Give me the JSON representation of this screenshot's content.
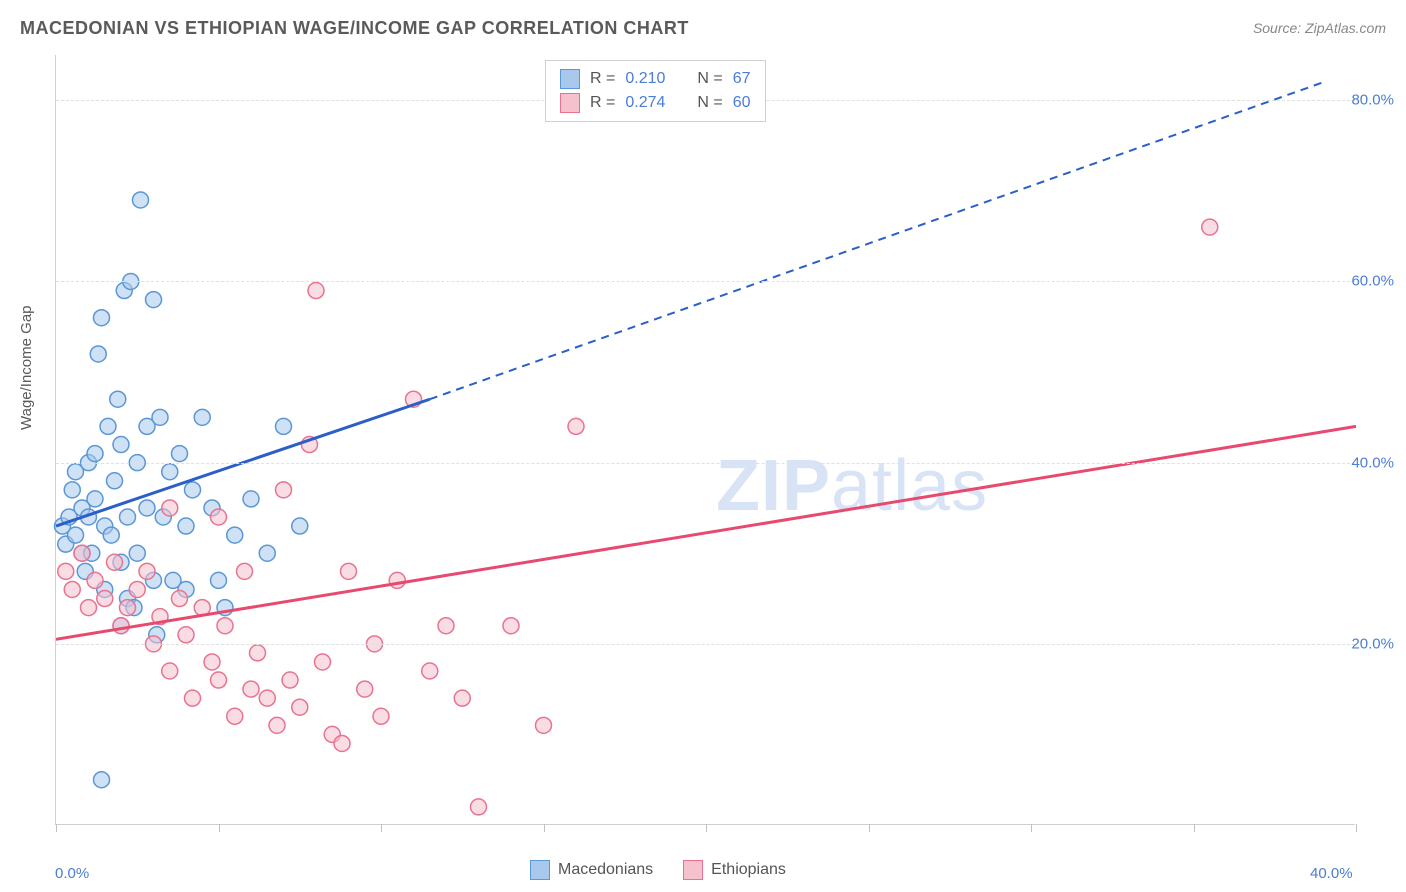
{
  "title": "MACEDONIAN VS ETHIOPIAN WAGE/INCOME GAP CORRELATION CHART",
  "source": "Source: ZipAtlas.com",
  "watermark": {
    "bold": "ZIP",
    "rest": "atlas"
  },
  "ylabel": "Wage/Income Gap",
  "chart": {
    "type": "scatter",
    "xlim": [
      0,
      40
    ],
    "ylim": [
      0,
      85
    ],
    "yticks": [
      20,
      40,
      60,
      80
    ],
    "ytick_labels": [
      "20.0%",
      "40.0%",
      "60.0%",
      "80.0%"
    ],
    "xticks": [
      0,
      5,
      10,
      15,
      20,
      25,
      30,
      35,
      40
    ],
    "xtick_labels_shown": {
      "0": "0.0%",
      "40": "40.0%"
    },
    "grid_color": "#e0e0e0",
    "background_color": "#ffffff",
    "axis_color": "#d0d0d0",
    "series": [
      {
        "name": "Macedonians",
        "color_fill": "#a8c9ec",
        "color_stroke": "#5b96d6",
        "trend_color": "#2a5fc9",
        "trend_solid": [
          [
            0,
            33
          ],
          [
            11.5,
            47
          ]
        ],
        "trend_dash": [
          [
            11.5,
            47
          ],
          [
            39,
            82
          ]
        ],
        "R": "0.210",
        "N": "67",
        "points": [
          [
            0.2,
            33
          ],
          [
            0.3,
            31
          ],
          [
            0.4,
            34
          ],
          [
            0.5,
            37
          ],
          [
            0.6,
            32
          ],
          [
            0.6,
            39
          ],
          [
            0.8,
            30
          ],
          [
            0.8,
            35
          ],
          [
            0.9,
            28
          ],
          [
            1.0,
            40
          ],
          [
            1.0,
            34
          ],
          [
            1.1,
            30
          ],
          [
            1.2,
            41
          ],
          [
            1.2,
            36
          ],
          [
            1.3,
            52
          ],
          [
            1.4,
            56
          ],
          [
            1.5,
            33
          ],
          [
            1.5,
            26
          ],
          [
            1.6,
            44
          ],
          [
            1.7,
            32
          ],
          [
            1.8,
            38
          ],
          [
            1.9,
            47
          ],
          [
            2.0,
            29
          ],
          [
            2.0,
            42
          ],
          [
            2.1,
            59
          ],
          [
            2.2,
            25
          ],
          [
            2.2,
            34
          ],
          [
            2.3,
            60
          ],
          [
            2.4,
            24
          ],
          [
            2.5,
            40
          ],
          [
            2.5,
            30
          ],
          [
            2.6,
            69
          ],
          [
            2.8,
            35
          ],
          [
            2.8,
            44
          ],
          [
            3.0,
            58
          ],
          [
            3.0,
            27
          ],
          [
            3.1,
            21
          ],
          [
            3.2,
            45
          ],
          [
            3.3,
            34
          ],
          [
            3.5,
            39
          ],
          [
            3.6,
            27
          ],
          [
            3.8,
            41
          ],
          [
            4.0,
            33
          ],
          [
            4.0,
            26
          ],
          [
            4.2,
            37
          ],
          [
            4.5,
            45
          ],
          [
            4.8,
            35
          ],
          [
            5.0,
            27
          ],
          [
            5.2,
            24
          ],
          [
            5.5,
            32
          ],
          [
            6.0,
            36
          ],
          [
            6.5,
            30
          ],
          [
            7.0,
            44
          ],
          [
            7.5,
            33
          ],
          [
            1.4,
            5
          ],
          [
            2.0,
            22
          ]
        ]
      },
      {
        "name": "Ethiopians",
        "color_fill": "#f5c1cd",
        "color_stroke": "#e8738f",
        "trend_color": "#e8496f",
        "trend_solid": [
          [
            0,
            20.5
          ],
          [
            40,
            44
          ]
        ],
        "trend_dash": null,
        "R": "0.274",
        "N": "60",
        "points": [
          [
            0.3,
            28
          ],
          [
            0.5,
            26
          ],
          [
            0.8,
            30
          ],
          [
            1.0,
            24
          ],
          [
            1.2,
            27
          ],
          [
            1.5,
            25
          ],
          [
            1.8,
            29
          ],
          [
            2.0,
            22
          ],
          [
            2.2,
            24
          ],
          [
            2.5,
            26
          ],
          [
            2.8,
            28
          ],
          [
            3.0,
            20
          ],
          [
            3.2,
            23
          ],
          [
            3.5,
            17
          ],
          [
            3.8,
            25
          ],
          [
            4.0,
            21
          ],
          [
            4.2,
            14
          ],
          [
            4.5,
            24
          ],
          [
            4.8,
            18
          ],
          [
            5.0,
            16
          ],
          [
            5.2,
            22
          ],
          [
            5.5,
            12
          ],
          [
            5.8,
            28
          ],
          [
            6.0,
            15
          ],
          [
            6.2,
            19
          ],
          [
            6.5,
            14
          ],
          [
            6.8,
            11
          ],
          [
            7.0,
            37
          ],
          [
            7.2,
            16
          ],
          [
            7.5,
            13
          ],
          [
            7.8,
            42
          ],
          [
            8.0,
            59
          ],
          [
            8.2,
            18
          ],
          [
            8.5,
            10
          ],
          [
            8.8,
            9
          ],
          [
            9.0,
            28
          ],
          [
            9.5,
            15
          ],
          [
            9.8,
            20
          ],
          [
            10.0,
            12
          ],
          [
            10.5,
            27
          ],
          [
            11.0,
            47
          ],
          [
            11.5,
            17
          ],
          [
            12.0,
            22
          ],
          [
            12.5,
            14
          ],
          [
            13.0,
            2
          ],
          [
            14.0,
            22
          ],
          [
            15.0,
            11
          ],
          [
            16.0,
            44
          ],
          [
            35.5,
            66
          ],
          [
            3.5,
            35
          ],
          [
            5.0,
            34
          ]
        ]
      }
    ]
  },
  "legend_top_label_R": "R =",
  "legend_top_label_N": "N ="
}
